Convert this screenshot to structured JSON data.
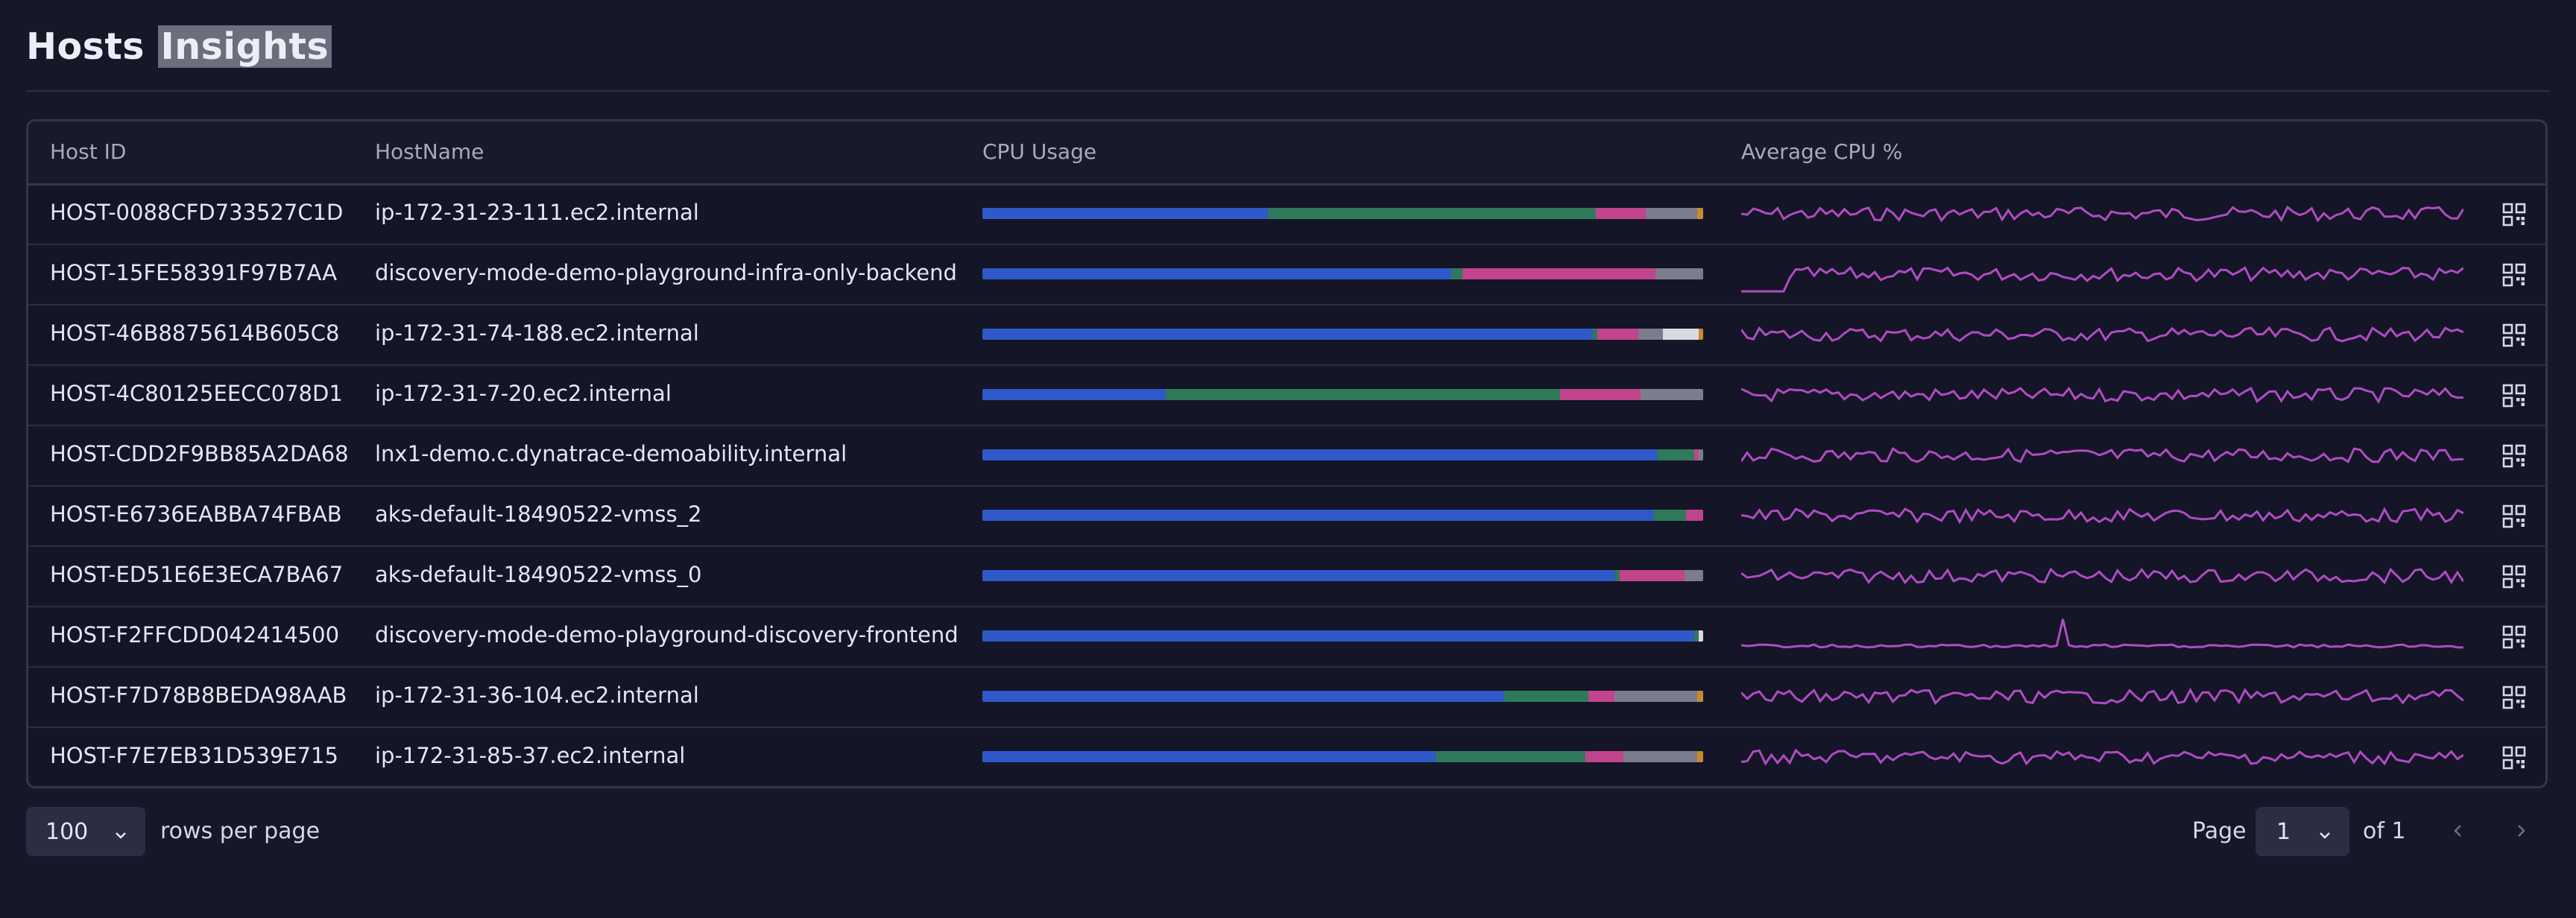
{
  "page": {
    "title_part1": "Hosts",
    "title_part2": "Insights"
  },
  "table": {
    "columns": [
      "Host ID",
      "HostName",
      "CPU Usage",
      "Average CPU %"
    ],
    "rows": [
      {
        "host_id": "HOST-0088CFD733527C1D",
        "host_name": "ip-172-31-23-111.ec2.internal"
      },
      {
        "host_id": "HOST-15FE58391F97B7AA",
        "host_name": "discovery-mode-demo-playground-infra-only-backend"
      },
      {
        "host_id": "HOST-46B8875614B605C8",
        "host_name": "ip-172-31-74-188.ec2.internal"
      },
      {
        "host_id": "HOST-4C80125EECC078D1",
        "host_name": "ip-172-31-7-20.ec2.internal"
      },
      {
        "host_id": "HOST-CDD2F9BB85A2DA68",
        "host_name": "lnx1-demo.c.dynatrace-demoability.internal"
      },
      {
        "host_id": "HOST-E6736EABBA74FBAB",
        "host_name": "aks-default-18490522-vmss_2"
      },
      {
        "host_id": "HOST-ED51E6E3ECA7BA67",
        "host_name": "aks-default-18490522-vmss_0"
      },
      {
        "host_id": "HOST-F2FFCDD042414500",
        "host_name": "discovery-mode-demo-playground-discovery-frontend"
      },
      {
        "host_id": "HOST-F7D78B8BEDA98AAB",
        "host_name": "ip-172-31-36-104.ec2.internal"
      },
      {
        "host_id": "HOST-F7E7EB31D539E715",
        "host_name": "ip-172-31-85-37.ec2.internal"
      }
    ],
    "cpu_usage": [
      [
        0.396,
        0.455,
        0.069,
        0.072,
        0,
        0.008
      ],
      [
        0.65,
        0.016,
        0.268,
        0.066,
        0,
        0
      ],
      [
        0.847,
        0.006,
        0.057,
        0.034,
        0.05,
        0.006
      ],
      [
        0.254,
        0.547,
        0.112,
        0.087,
        0,
        0
      ],
      [
        0.937,
        0.051,
        0.006,
        0.006,
        0,
        0
      ],
      [
        0.932,
        0.044,
        0.024,
        0,
        0,
        0
      ],
      [
        0.878,
        0.006,
        0.09,
        0.026,
        0,
        0
      ],
      [
        0.988,
        0.006,
        0,
        0,
        0.006,
        0
      ],
      [
        0.724,
        0.117,
        0.036,
        0.115,
        0,
        0.008
      ],
      [
        0.629,
        0.208,
        0.052,
        0.103,
        0,
        0.008
      ]
    ],
    "segment_colors": [
      "#2f58c8",
      "#2f7a5a",
      "#c2448c",
      "#7b7d8c",
      "#d9d9e0",
      "#c98a2a"
    ]
  },
  "footer": {
    "rows_per_page_value": "100",
    "rows_per_page_label": "rows per page",
    "page_label": "Page",
    "page_value": "1",
    "of_label": "of 1"
  },
  "icons": {
    "chevron": "chevron-down-icon",
    "prev": "chevron-left-icon",
    "next": "chevron-right-icon",
    "row_action": "qr-code-icon"
  },
  "colors": {
    "spark": "#b04bc4",
    "background": "#161728"
  }
}
